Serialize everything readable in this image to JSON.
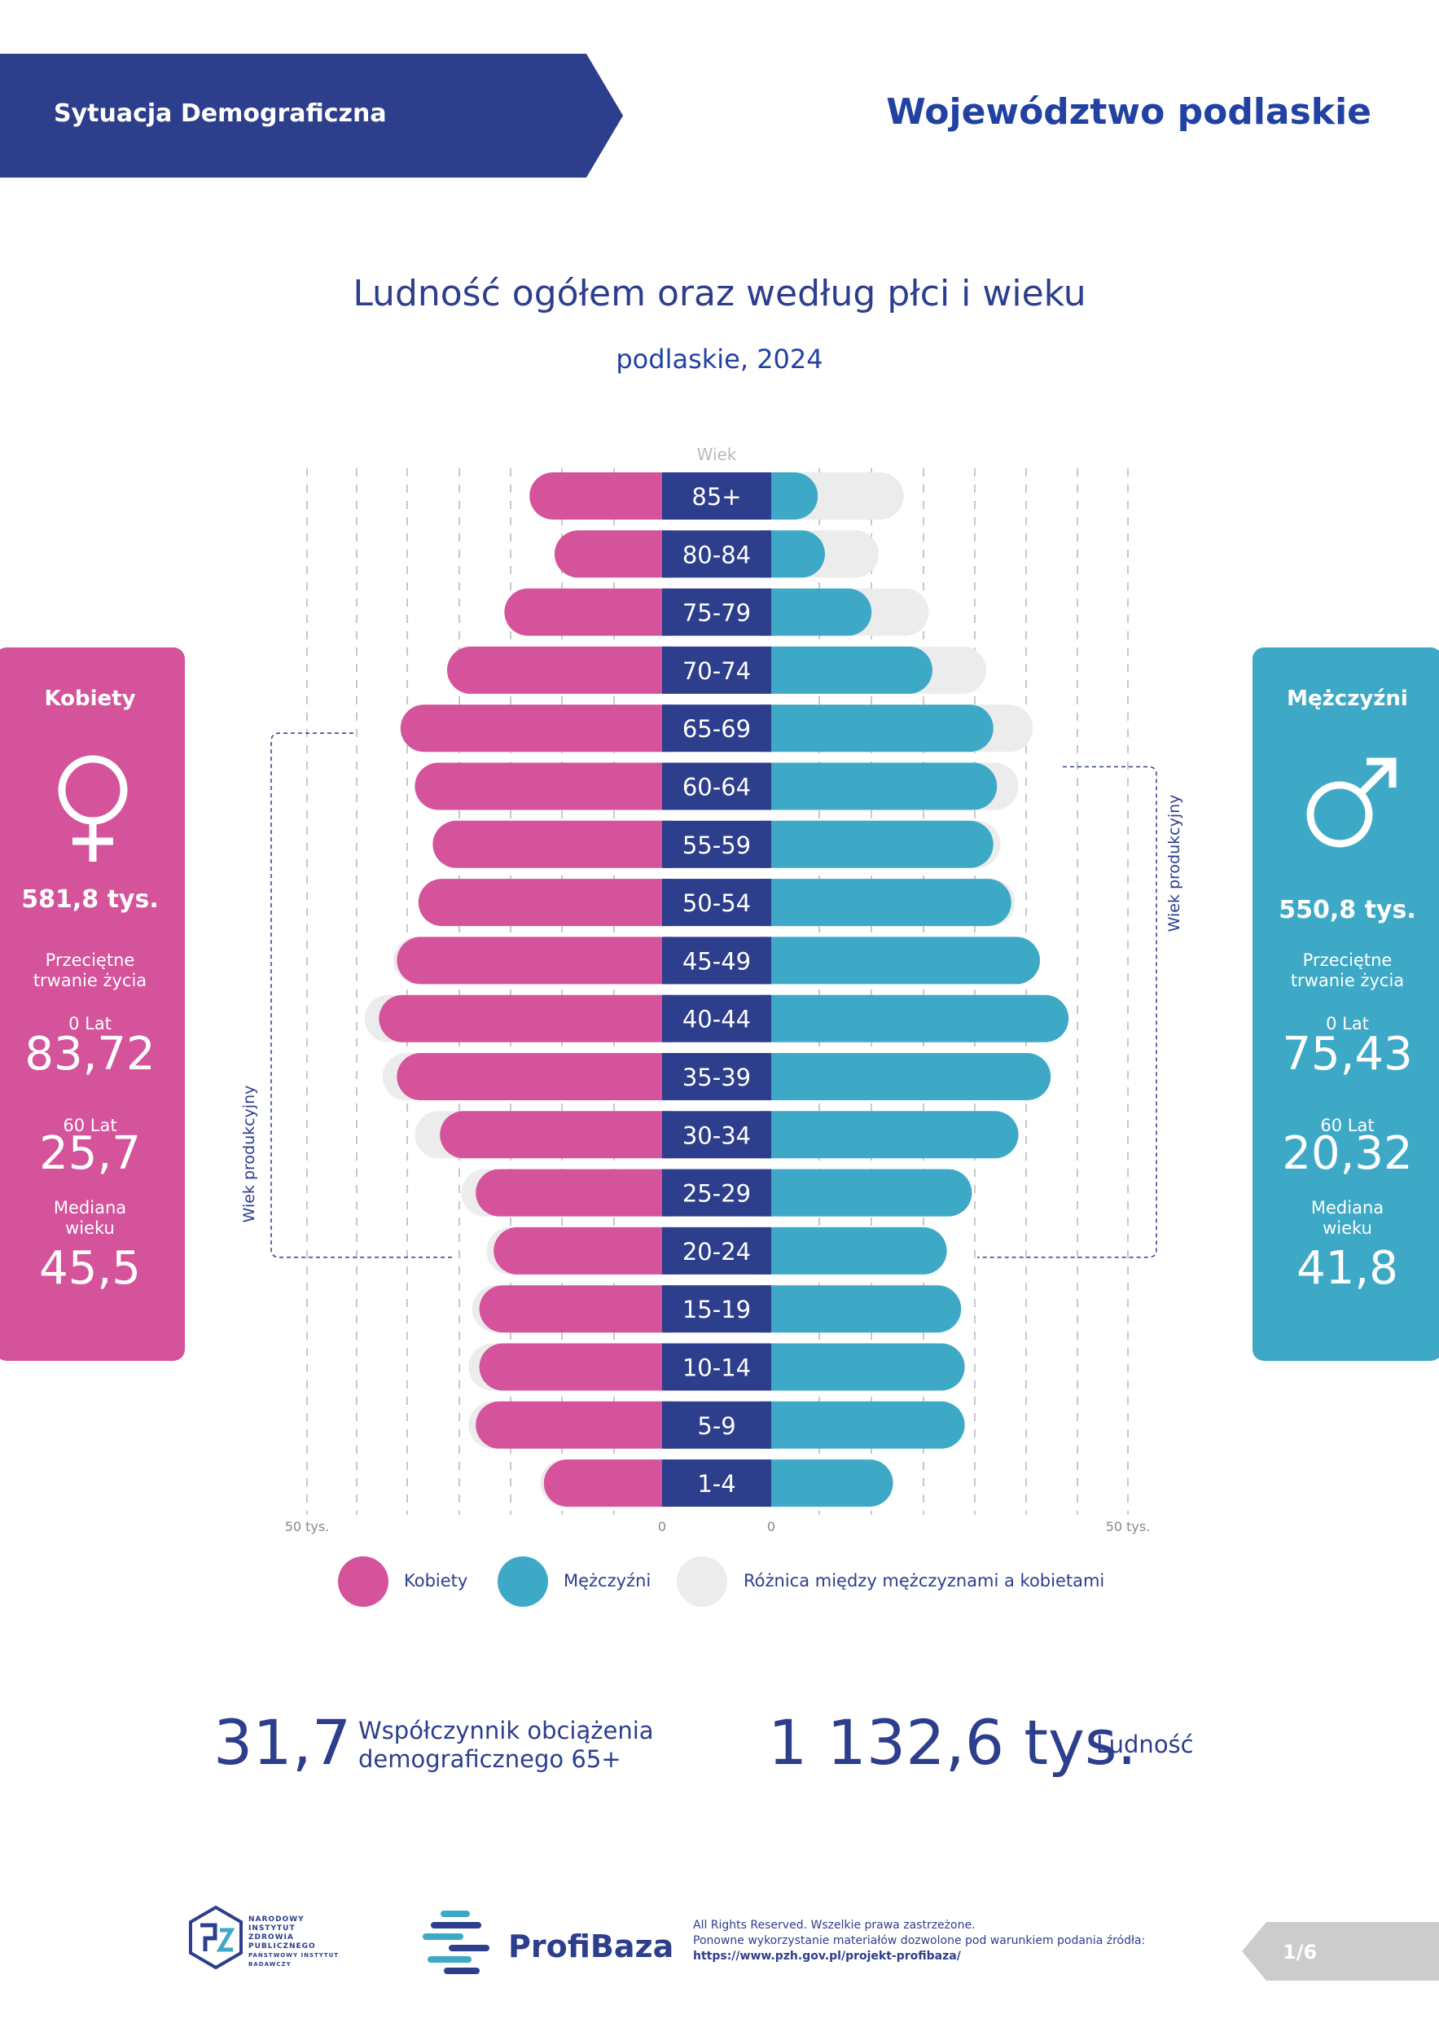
{
  "header": {
    "section": "Sytuacja Demograficzna",
    "region": "Województwo podlaskie"
  },
  "title": "Ludność ogółem oraz według płci i wieku",
  "subtitle": "podlaskie, 2024",
  "colors": {
    "navy": "#2d3e8c",
    "women": "#d4539b",
    "men": "#3ea9c6",
    "difference": "#ececec",
    "label_bg": "#2d3e8c"
  },
  "women_panel": {
    "heading": "Kobiety",
    "icon": "female-symbol-icon",
    "population": "581,8 tys.",
    "life_expectancy_label": "Przeciętne trwanie życia",
    "age0_label": "0 Lat",
    "age0_value": "83,72",
    "age60_label": "60 Lat",
    "age60_value": "25,7",
    "median_label": "Mediana wieku",
    "median_value": "45,5"
  },
  "men_panel": {
    "heading": "Mężczyźni",
    "icon": "male-symbol-icon",
    "population": "550,8 tys.",
    "life_expectancy_label": "Przeciętne trwanie życia",
    "age0_label": "0 Lat",
    "age0_value": "75,43",
    "age60_label": "60 Lat",
    "age60_value": "20,32",
    "median_label": "Mediana wieku",
    "median_value": "41,8"
  },
  "chart_data": {
    "type": "bar",
    "orientation": "population-pyramid",
    "axis_title": "Wiek",
    "categories": [
      "85+",
      "80-84",
      "75-79",
      "70-74",
      "65-69",
      "60-64",
      "55-59",
      "50-54",
      "45-49",
      "40-44",
      "35-39",
      "30-34",
      "25-29",
      "20-24",
      "15-19",
      "10-14",
      "5-9",
      "1-4"
    ],
    "series": [
      {
        "name": "Kobiety",
        "values": [
          18.5,
          15.0,
          22.0,
          30.0,
          36.5,
          34.5,
          32.0,
          34.0,
          37.0,
          39.5,
          37.0,
          31.0,
          26.0,
          23.5,
          25.5,
          25.5,
          26.0,
          16.5
        ]
      },
      {
        "name": "Mężczyźni",
        "values": [
          6.5,
          7.5,
          14.0,
          22.5,
          31.0,
          31.5,
          31.0,
          33.5,
          37.5,
          41.5,
          39.0,
          34.5,
          28.0,
          24.5,
          26.5,
          27.0,
          27.0,
          17.0
        ]
      }
    ],
    "difference_series_name": "Różnica między mężczyznami a kobietami",
    "x_tick_labels": {
      "left": [
        "50 tys.",
        "0"
      ],
      "right": [
        "0",
        "50 tys."
      ]
    },
    "xlim": [
      0,
      50
    ],
    "productive_age_label": "Wiek produkcyjny",
    "productive_age_women": "20-64",
    "productive_age_men": "20-64",
    "legend": [
      "Kobiety",
      "Mężczyźni",
      "Różnica między mężczyznami a kobietami"
    ],
    "legend_placement": "bottom",
    "grid": true
  },
  "stats": {
    "dependency_value": "31,7",
    "dependency_label_line1": "Współczynnik obciążenia",
    "dependency_label_line2": "demograficznego 65+",
    "population_value": "1 132,6 tys.",
    "population_label": "Ludność"
  },
  "footer": {
    "nizp_lines": [
      "NARODOWY",
      "INSTYTUT",
      "ZDROWIA",
      "PUBLICZNEGO",
      "PAŃSTWOWY INSTYTUT",
      "BADAWCZY"
    ],
    "profibaza": "ProfiBaza",
    "rights_line1": "All Rights Reserved. Wszelkie prawa zastrzeżone.",
    "rights_line2": "Ponowne wykorzystanie materiałów dozwolone pod warunkiem podania źródła:",
    "url": "https://www.pzh.gov.pl/projekt-profibaza/",
    "page": "1/6"
  }
}
